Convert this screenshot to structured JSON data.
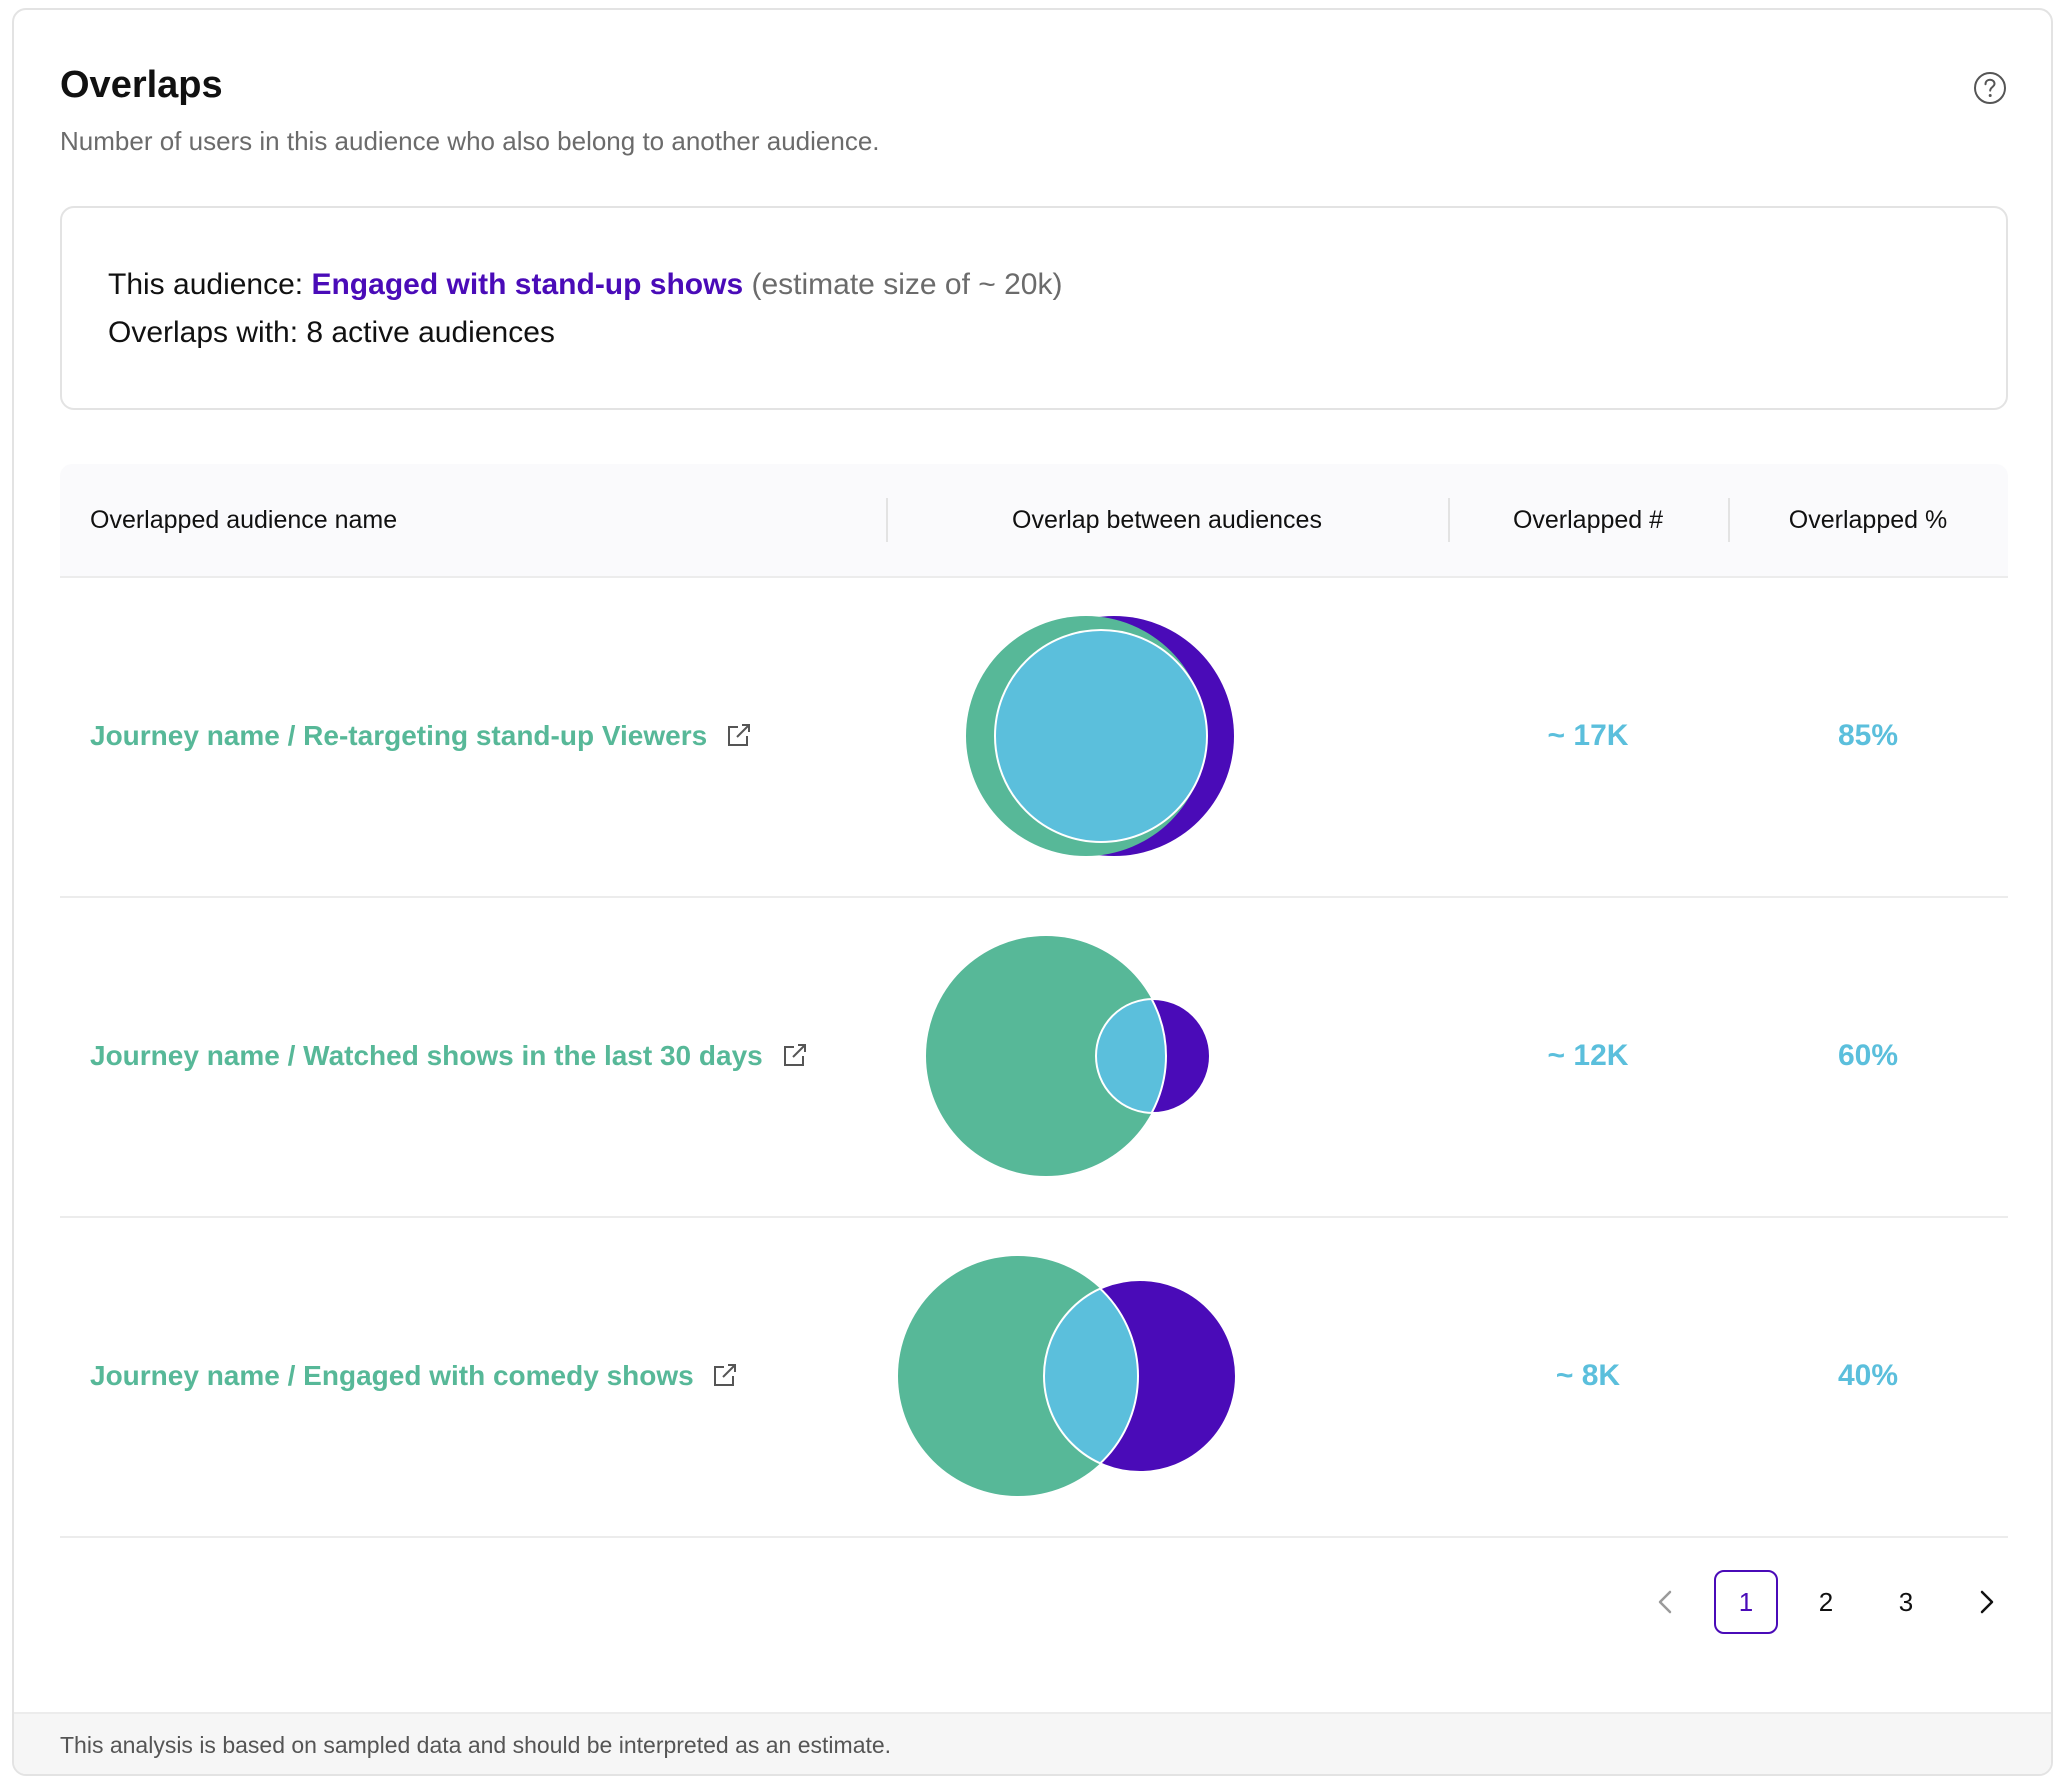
{
  "header": {
    "title": "Overlaps",
    "subtitle": "Number of users in this audience who also belong to another audience."
  },
  "summary": {
    "this_audience_label": "This audience:",
    "this_audience_name": "Engaged with stand-up shows",
    "this_audience_estimate": "(estimate size of ~ 20k)",
    "overlaps_with": "Overlaps with: 8 active audiences"
  },
  "table": {
    "columns": [
      "Overlapped audience name",
      "Overlap between audiences",
      "Overlapped #",
      "Overlapped %"
    ],
    "rows": [
      {
        "name": "Journey name / Re-targeting stand-up Viewers",
        "overlapped_count": "~ 17K",
        "overlapped_percent": "85%"
      },
      {
        "name": "Journey name / Watched shows in the last 30 days",
        "overlapped_count": "~ 12K",
        "overlapped_percent": "60%"
      },
      {
        "name": "Journey name / Engaged with comedy shows",
        "overlapped_count": "~ 8K",
        "overlapped_percent": "40%"
      }
    ]
  },
  "pagination": {
    "pages": [
      "1",
      "2",
      "3"
    ],
    "current": "1"
  },
  "footer": {
    "note": "This analysis is based on sampled data and should be interpreted as an estimate."
  },
  "colors": {
    "this_audience": "#4a0bb8",
    "other_audience": "#57b898",
    "intersection": "#5bbfdc",
    "link": "#57b898",
    "metric": "#5bbfdc"
  },
  "icons": {
    "help": "help-circle-icon",
    "external": "external-link-icon",
    "prev": "chevron-left-icon",
    "next": "chevron-right-icon"
  }
}
